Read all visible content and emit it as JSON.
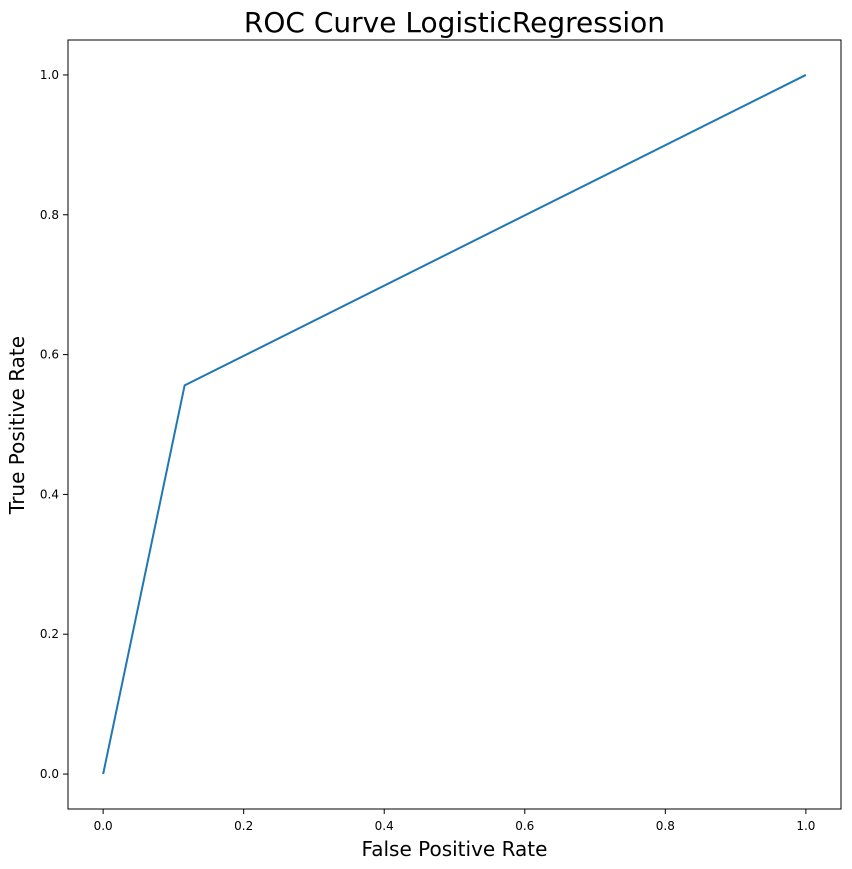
{
  "chart_data": {
    "type": "line",
    "title": "ROC Curve LogisticRegression",
    "xlabel": "False Positive Rate",
    "ylabel": "True Positive Rate",
    "xlim": [
      -0.05,
      1.05
    ],
    "ylim": [
      -0.05,
      1.05
    ],
    "xticks": [
      "0.0",
      "0.2",
      "0.4",
      "0.6",
      "0.8",
      "1.0"
    ],
    "yticks": [
      "0.0",
      "0.2",
      "0.4",
      "0.6",
      "0.8",
      "1.0"
    ],
    "grid": false,
    "series": [
      {
        "color": "#1f77b4",
        "x": [
          0.0,
          0.116,
          1.0
        ],
        "y": [
          0.0,
          0.556,
          1.0
        ]
      }
    ]
  }
}
